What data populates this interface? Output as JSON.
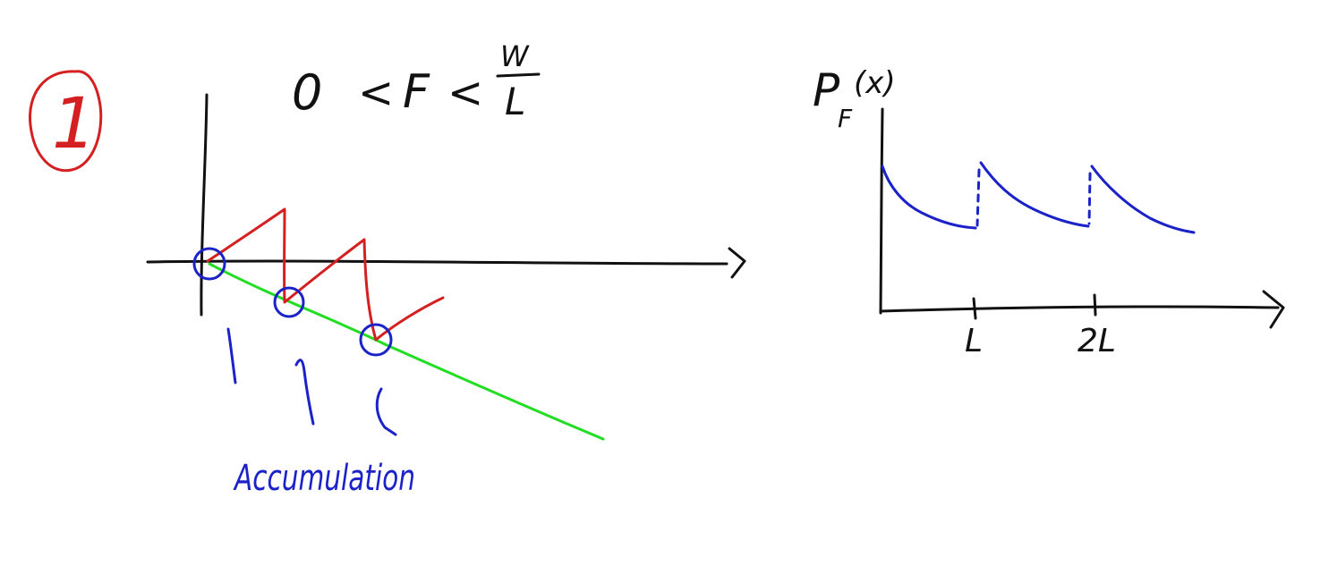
{
  "colors": {
    "ink": "#111111",
    "marker_red": "#d42020",
    "marker_blue": "#1a22c8",
    "marker_green": "#22dd22",
    "background": "#ffffff"
  },
  "step_number": "1",
  "condition": {
    "lhs": "0",
    "lt1": "<",
    "force": "F",
    "lt2": "<",
    "numerator": "W",
    "denominator": "L"
  },
  "left_plot": {
    "annotation": "Accumulation"
  },
  "right_plot": {
    "ylabel_main": "P",
    "ylabel_sub": "F",
    "ylabel_arg": "(x)",
    "xticks": [
      "L",
      "2L"
    ]
  }
}
